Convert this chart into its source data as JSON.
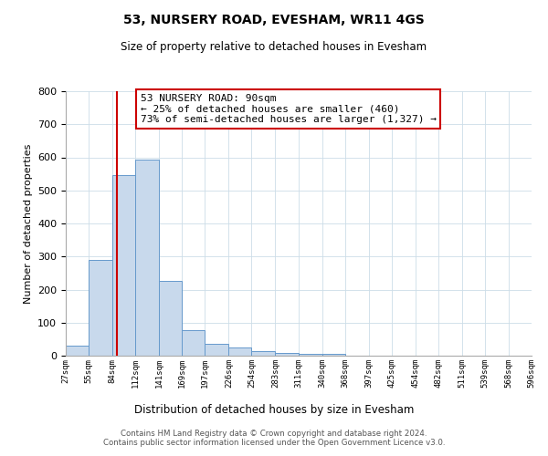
{
  "title": "53, NURSERY ROAD, EVESHAM, WR11 4GS",
  "subtitle": "Size of property relative to detached houses in Evesham",
  "xlabel": "Distribution of detached houses by size in Evesham",
  "ylabel": "Number of detached properties",
  "bin_edges": [
    27,
    55,
    84,
    112,
    141,
    169,
    197,
    226,
    254,
    283,
    311,
    340,
    368,
    397,
    425,
    454,
    482,
    511,
    539,
    568,
    596
  ],
  "bar_heights": [
    29,
    289,
    547,
    593,
    225,
    78,
    37,
    25,
    13,
    8,
    5,
    5,
    0,
    0,
    0,
    0,
    0,
    0,
    0,
    0
  ],
  "bar_color": "#c8d9ec",
  "bar_edgecolor": "#6699cc",
  "vline_x": 90,
  "vline_color": "#cc0000",
  "ylim": [
    0,
    800
  ],
  "yticks": [
    0,
    100,
    200,
    300,
    400,
    500,
    600,
    700,
    800
  ],
  "annotation_text": "53 NURSERY ROAD: 90sqm\n← 25% of detached houses are smaller (460)\n73% of semi-detached houses are larger (1,327) →",
  "footer_line1": "Contains HM Land Registry data © Crown copyright and database right 2024.",
  "footer_line2": "Contains public sector information licensed under the Open Government Licence v3.0.",
  "background_color": "#ffffff",
  "grid_color": "#ccdde8"
}
